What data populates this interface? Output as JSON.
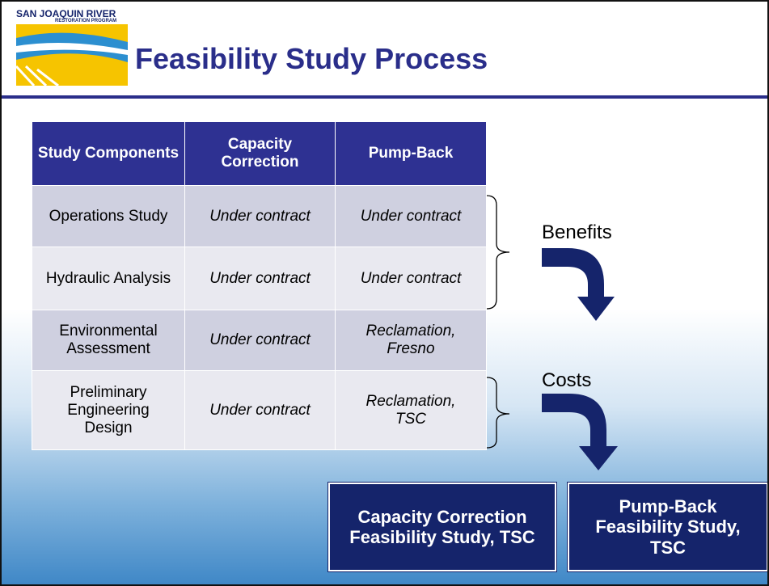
{
  "logo": {
    "line1": "SAN JOAQUIN RIVER",
    "line2": "RESTORATION PROGRAM"
  },
  "title": "Feasibility Study Process",
  "table": {
    "header": [
      "Study Components",
      "Capacity Correction",
      "Pump-Back"
    ],
    "rows": [
      [
        "Operations Study",
        "Under contract",
        "Under contract"
      ],
      [
        "Hydraulic Analysis",
        "Under contract",
        "Under contract"
      ],
      [
        "Environmental Assessment",
        "Under contract",
        "Reclamation, Fresno"
      ],
      [
        "Preliminary Engineering Design",
        "Under contract",
        "Reclamation, TSC"
      ]
    ]
  },
  "labels": {
    "benefits": "Benefits",
    "costs": "Costs"
  },
  "boxes": [
    "Capacity Correction Feasibility Study, TSC",
    "Pump-Back Feasibility Study, TSC"
  ]
}
